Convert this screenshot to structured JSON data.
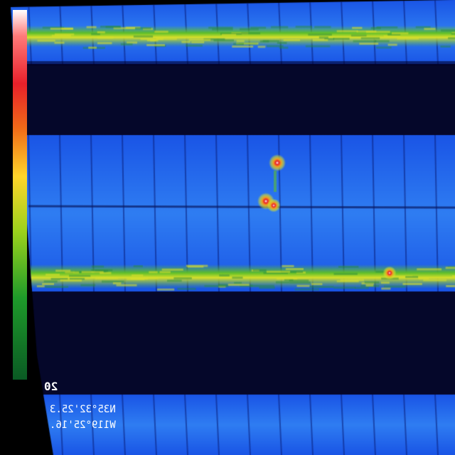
{
  "image": {
    "subject": "thermal-camera-aerial-view-of-solar-panel-rows",
    "colors": {
      "background": "#000000",
      "gap": "#05072a",
      "panel_base": "#1a55e6",
      "panel_light": "#2f7df2",
      "warm_edge_green": "#5fbf2a",
      "warm_edge_yellow": "#d8e02a",
      "hotspot_red": "#e8202a",
      "hotspot_orange": "#f0a020"
    },
    "overlay": {
      "fragment_text": "20",
      "latitude_text": "N35°32'25.3",
      "longitude_text": "W119°25'16."
    },
    "palette_legend": [
      "white",
      "red",
      "orange",
      "yellow",
      "green"
    ]
  }
}
